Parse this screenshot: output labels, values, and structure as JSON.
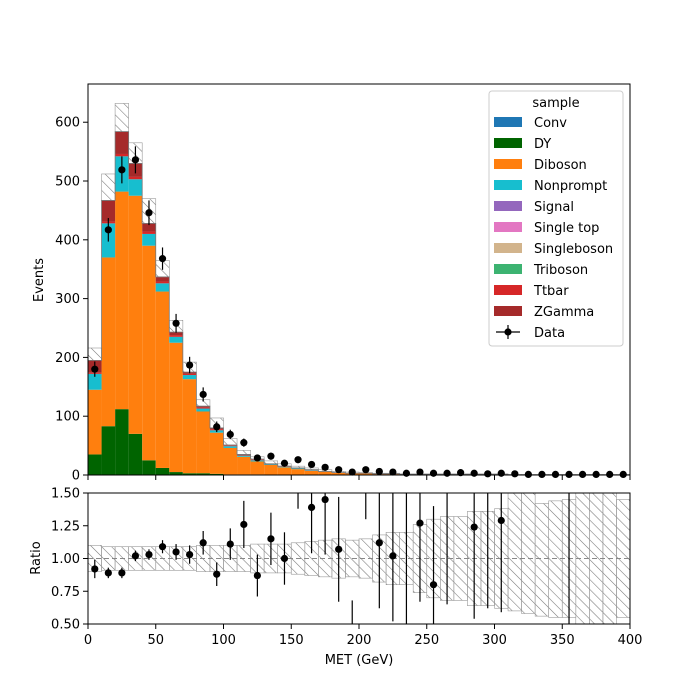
{
  "chart_data": {
    "type": "bar",
    "stacked": true,
    "bin_edges": [
      0,
      10,
      20,
      30,
      40,
      50,
      60,
      70,
      80,
      90,
      100,
      110,
      120,
      130,
      140,
      150,
      160,
      170,
      180,
      190,
      200,
      210,
      220,
      230,
      240,
      250,
      260,
      270,
      280,
      290,
      300,
      310,
      320,
      330,
      340,
      350,
      360,
      370,
      380,
      390,
      400
    ],
    "xlabel": "MET (GeV)",
    "ylabel": "Events",
    "xlim": [
      0,
      400
    ],
    "ylim": [
      0,
      665
    ],
    "yticks": [
      0,
      100,
      200,
      300,
      400,
      500,
      600
    ],
    "xticks": [
      0,
      50,
      100,
      150,
      200,
      250,
      300,
      350,
      400
    ],
    "legend": {
      "title": "sample",
      "placement": "top-right"
    },
    "series": [
      {
        "name": "Conv",
        "color": "#1f77b4",
        "values": [
          0,
          0,
          0,
          0,
          0,
          0,
          0,
          0,
          0,
          0,
          0,
          0,
          0,
          0,
          0,
          0,
          0,
          0,
          0,
          0,
          0,
          0,
          0,
          0,
          0,
          0,
          0,
          0,
          0,
          0,
          0,
          0,
          0,
          0,
          0,
          0,
          0,
          0,
          0,
          0
        ]
      },
      {
        "name": "DY",
        "color": "#006400",
        "values": [
          35,
          83,
          112,
          70,
          25,
          12,
          5,
          3,
          3,
          2,
          1,
          1,
          1,
          0,
          0,
          0,
          0,
          0,
          0,
          0,
          0,
          0,
          0,
          0,
          0,
          0,
          0,
          0,
          0,
          0,
          0,
          0,
          0,
          0,
          0,
          0,
          0,
          0,
          0,
          0
        ]
      },
      {
        "name": "Diboson",
        "color": "#ff7f0e",
        "values": [
          110,
          287,
          370,
          405,
          365,
          300,
          220,
          160,
          105,
          70,
          45,
          30,
          22,
          17,
          13,
          10,
          7,
          6,
          4,
          3,
          3,
          2,
          2,
          1,
          1,
          1,
          1,
          1,
          1,
          1,
          1,
          0,
          0,
          0,
          0,
          0,
          0,
          0,
          0,
          0
        ]
      },
      {
        "name": "Nonprompt",
        "color": "#17becf",
        "values": [
          27,
          58,
          60,
          28,
          20,
          14,
          10,
          7,
          5,
          4,
          3,
          2,
          2,
          1,
          1,
          1,
          1,
          0,
          0,
          0,
          0,
          0,
          0,
          0,
          0,
          0,
          0,
          0,
          0,
          0,
          0,
          0,
          0,
          0,
          0,
          0,
          0,
          0,
          0,
          0
        ]
      },
      {
        "name": "Signal",
        "color": "#9467bd",
        "values": [
          0,
          0,
          0,
          0,
          0,
          0,
          0,
          0,
          0,
          0,
          0,
          0,
          0,
          0,
          0,
          0,
          0,
          0,
          0,
          0,
          0,
          0,
          0,
          0,
          0,
          0,
          0,
          0,
          0,
          0,
          0,
          0,
          0,
          0,
          0,
          0,
          0,
          0,
          0,
          0
        ]
      },
      {
        "name": "Single top",
        "color": "#e377c2",
        "values": [
          0,
          0,
          0,
          0,
          0,
          0,
          0,
          0,
          0,
          0,
          0,
          0,
          0,
          0,
          0,
          0,
          0,
          0,
          0,
          0,
          0,
          0,
          0,
          0,
          0,
          0,
          0,
          0,
          0,
          0,
          0,
          0,
          0,
          0,
          0,
          0,
          0,
          0,
          0,
          0
        ]
      },
      {
        "name": "Singleboson",
        "color": "#d2b48c",
        "values": [
          0,
          0,
          0,
          0,
          0,
          0,
          0,
          0,
          0,
          0,
          0,
          0,
          0,
          0,
          0,
          0,
          0,
          0,
          0,
          0,
          0,
          0,
          0,
          0,
          0,
          0,
          0,
          0,
          0,
          0,
          0,
          0,
          0,
          0,
          0,
          0,
          0,
          0,
          0,
          0
        ]
      },
      {
        "name": "Triboson",
        "color": "#3cb371",
        "values": [
          0,
          0,
          0,
          0,
          0,
          0,
          0,
          0,
          0,
          0,
          0,
          0,
          0,
          0,
          0,
          0,
          0,
          0,
          0,
          0,
          0,
          0,
          0,
          0,
          0,
          0,
          0,
          0,
          0,
          0,
          0,
          0,
          0,
          0,
          0,
          0,
          0,
          0,
          0,
          0
        ]
      },
      {
        "name": "Ttbar",
        "color": "#d62728",
        "values": [
          2,
          3,
          4,
          4,
          4,
          3,
          3,
          2,
          2,
          2,
          1,
          1,
          1,
          1,
          1,
          1,
          1,
          0,
          0,
          0,
          0,
          0,
          0,
          0,
          0,
          0,
          0,
          0,
          0,
          0,
          0,
          0,
          0,
          0,
          0,
          0,
          0,
          0,
          0,
          0
        ]
      },
      {
        "name": "ZGamma",
        "color": "#a52a2a",
        "values": [
          21,
          36,
          38,
          23,
          14,
          8,
          5,
          3,
          2,
          2,
          1,
          1,
          1,
          0,
          0,
          0,
          0,
          0,
          0,
          0,
          0,
          0,
          0,
          0,
          0,
          0,
          0,
          0,
          0,
          0,
          0,
          0,
          0,
          0,
          0,
          0,
          0,
          0,
          0,
          0
        ]
      }
    ],
    "uncertainty_up": [
      216,
      512,
      632,
      565,
      470,
      365,
      263,
      192,
      128,
      97,
      62,
      42,
      31,
      24,
      19,
      15,
      12,
      9,
      6,
      5,
      4,
      3,
      3,
      2,
      2,
      2,
      2,
      2,
      2,
      2,
      2,
      1,
      1,
      1,
      1,
      1,
      1,
      1,
      1,
      1
    ],
    "data": {
      "name": "Data",
      "values": [
        180,
        417,
        519,
        536,
        446,
        368,
        258,
        187,
        137,
        82,
        69,
        55,
        29,
        32,
        20,
        26,
        18,
        13,
        9,
        5,
        9,
        6,
        5,
        3,
        5,
        3,
        3,
        4,
        3,
        2,
        3,
        2,
        1,
        1,
        1,
        1,
        1,
        1,
        1,
        1
      ],
      "errors": [
        13,
        20,
        23,
        23,
        21,
        19,
        16,
        14,
        12,
        9,
        8,
        7,
        5,
        6,
        4,
        5,
        4,
        4,
        3,
        2,
        3,
        2,
        2,
        2,
        2,
        2,
        2,
        2,
        2,
        1,
        2,
        1,
        1,
        1,
        1,
        1,
        1,
        1,
        1,
        1
      ]
    },
    "ratio": {
      "ylabel": "Ratio",
      "ylim": [
        0.5,
        1.5
      ],
      "yticks": [
        0.5,
        0.75,
        1.0,
        1.25,
        1.5
      ],
      "ytick_labels": [
        "0.50",
        "0.75",
        "1.00",
        "1.25",
        "1.50"
      ],
      "reference": 1.0,
      "band_down": [
        0.9,
        0.91,
        0.91,
        0.91,
        0.91,
        0.91,
        0.91,
        0.91,
        0.9,
        0.9,
        0.9,
        0.9,
        0.89,
        0.89,
        0.89,
        0.88,
        0.87,
        0.86,
        0.85,
        0.86,
        0.85,
        0.82,
        0.8,
        0.8,
        0.74,
        0.7,
        0.68,
        0.68,
        0.64,
        0.64,
        0.62,
        0.6,
        0.58,
        0.56,
        0.55,
        0.55,
        0.5,
        0.5,
        0.5,
        0.55
      ],
      "band_up": [
        1.1,
        1.09,
        1.09,
        1.09,
        1.09,
        1.09,
        1.09,
        1.09,
        1.1,
        1.1,
        1.1,
        1.1,
        1.11,
        1.11,
        1.11,
        1.12,
        1.13,
        1.14,
        1.15,
        1.14,
        1.15,
        1.18,
        1.2,
        1.2,
        1.26,
        1.3,
        1.32,
        1.32,
        1.36,
        1.36,
        1.38,
        1.5,
        1.5,
        1.42,
        1.44,
        1.45,
        1.5,
        1.5,
        1.5,
        1.45
      ],
      "values": [
        0.92,
        0.89,
        0.89,
        1.02,
        1.03,
        1.09,
        1.05,
        1.03,
        1.12,
        0.88,
        1.11,
        1.26,
        0.87,
        1.15,
        1.0,
        null,
        1.39,
        1.45,
        1.07,
        null,
        null,
        1.12,
        1.02,
        null,
        1.27,
        0.8,
        null,
        null,
        1.24,
        null,
        1.29,
        null,
        null,
        null,
        null,
        null,
        null,
        null,
        null,
        null
      ],
      "errors": [
        0.07,
        0.04,
        0.04,
        0.04,
        0.04,
        0.05,
        0.06,
        0.07,
        0.09,
        0.09,
        0.12,
        0.18,
        0.16,
        0.2,
        0.2,
        0.3,
        0.35,
        0.42,
        0.4,
        0.5,
        0.5,
        0.5,
        0.5,
        0.6,
        0.6,
        0.6,
        0.6,
        0.7,
        0.7,
        0.7,
        0.7,
        0.8,
        0.8,
        0.8,
        0.8,
        0.8,
        0.8,
        0.8,
        0.8,
        0.8
      ],
      "offscale_lines": [
        {
          "x": 155,
          "y0": 1.38,
          "y1": 1.5
        },
        {
          "x": 195,
          "y0": 0.5,
          "y1": 0.68
        },
        {
          "x": 205,
          "y0": 1.3,
          "y1": 1.5
        },
        {
          "x": 235,
          "y0": 0.5,
          "y1": 1.5
        },
        {
          "x": 265,
          "y0": 0.65,
          "y1": 1.5
        },
        {
          "x": 295,
          "y0": 0.62,
          "y1": 1.5
        },
        {
          "x": 355,
          "y0": 0.5,
          "y1": 1.5
        }
      ]
    }
  }
}
